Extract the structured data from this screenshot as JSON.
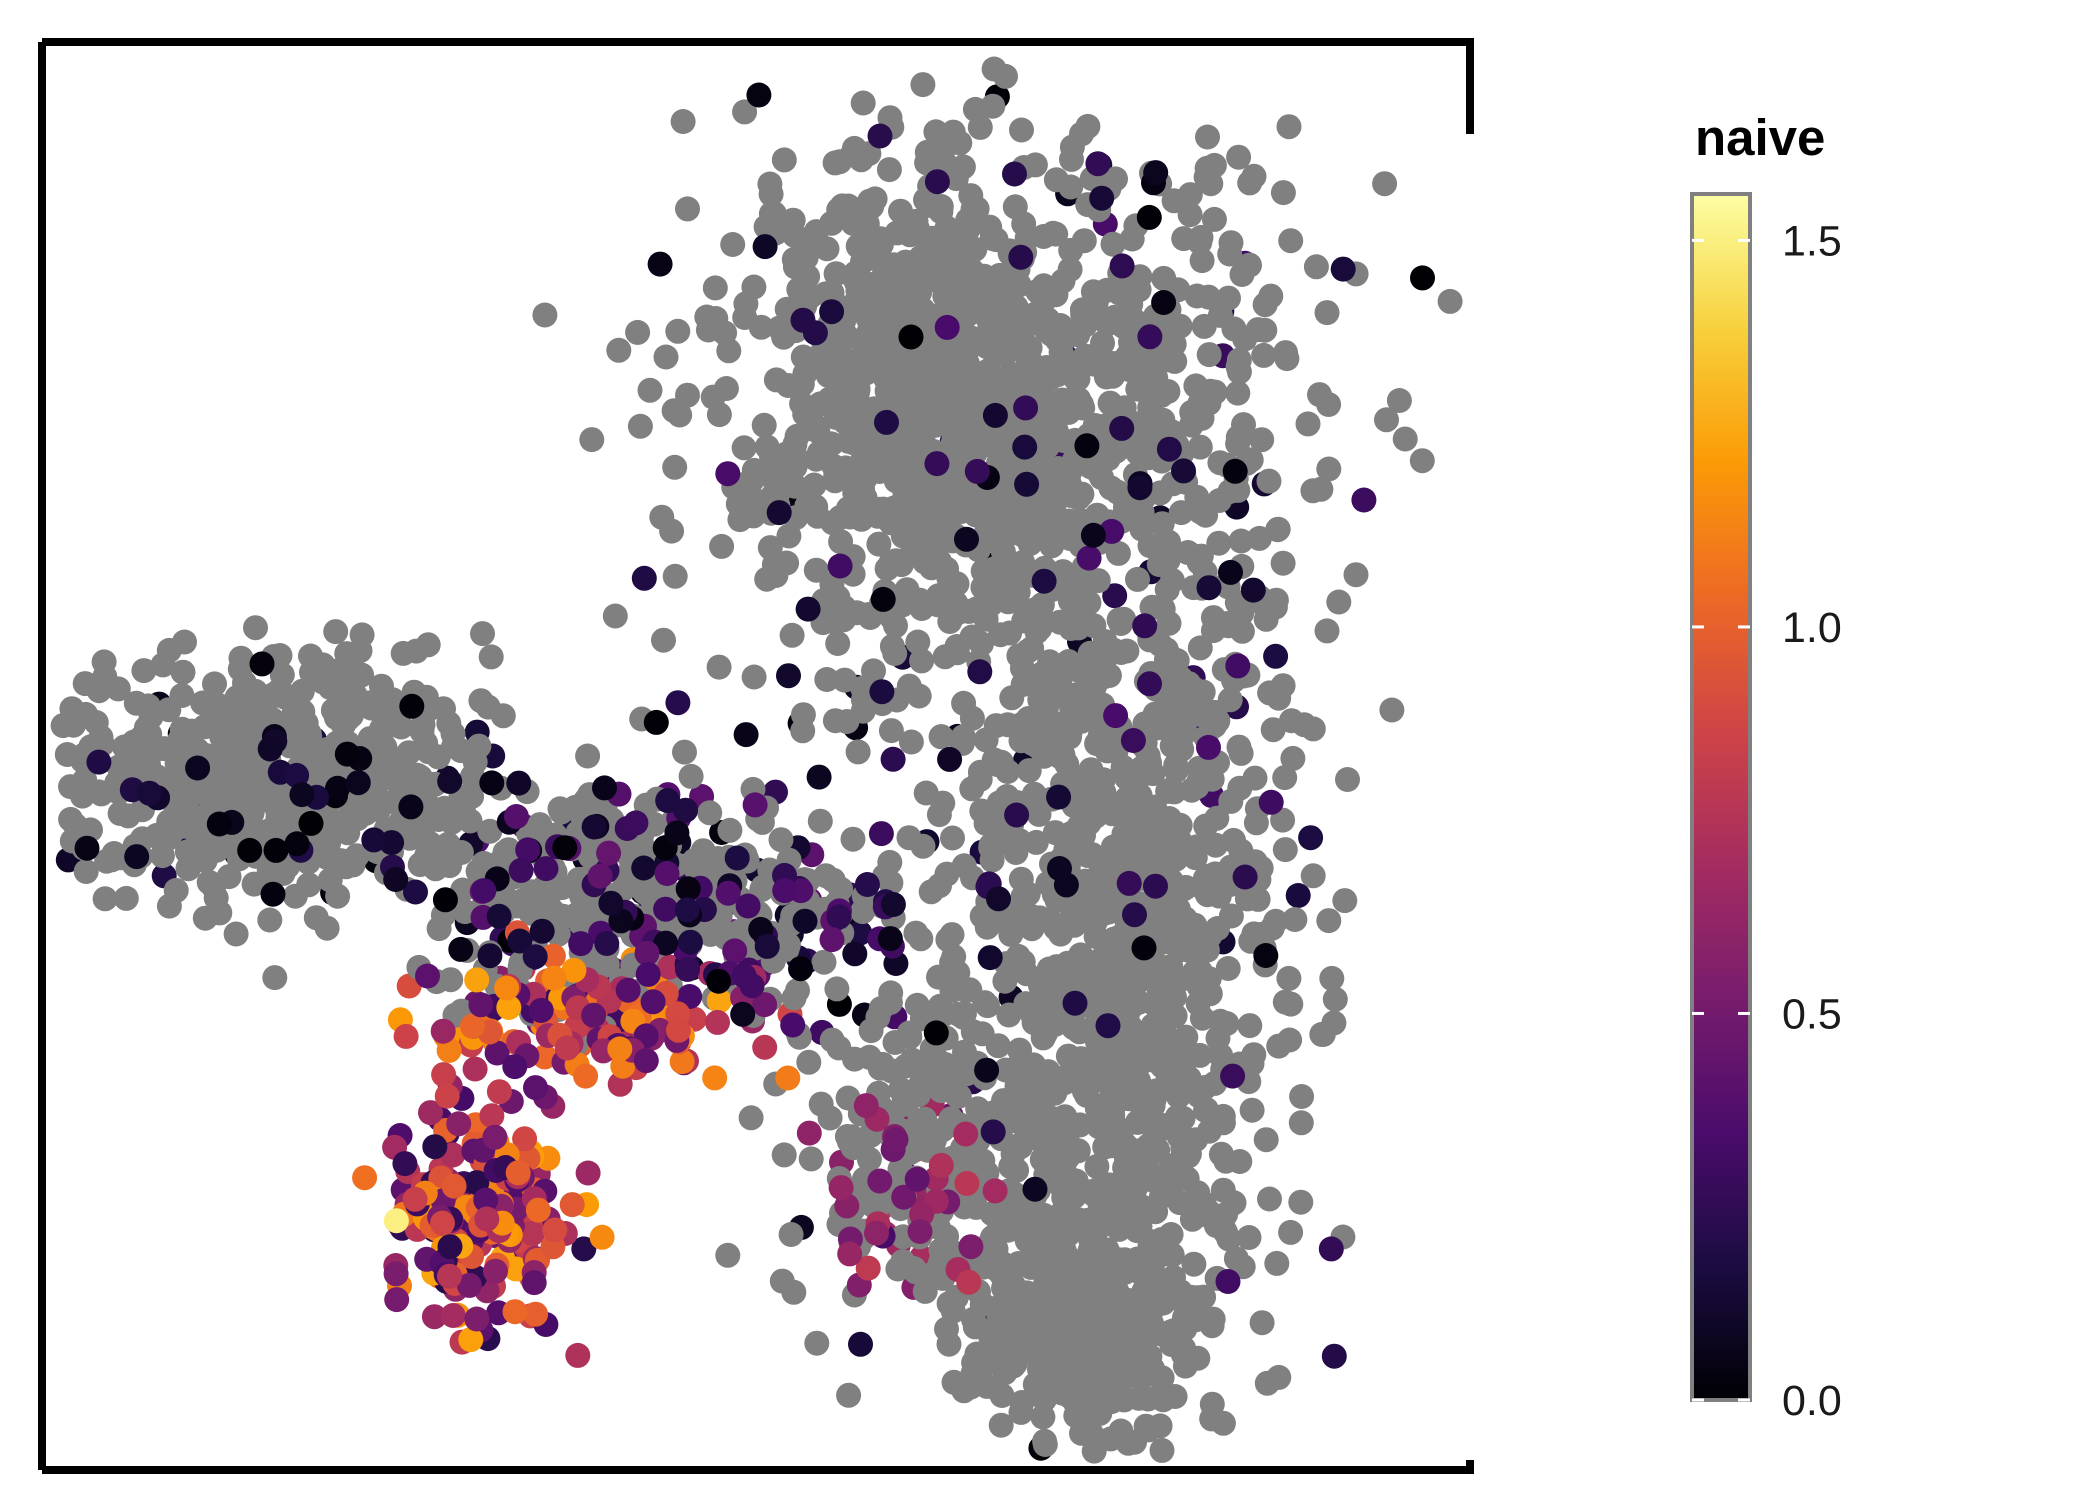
{
  "chart_data": {
    "type": "scatter",
    "title": "",
    "xlabel": "",
    "ylabel": "",
    "grid": false,
    "axis_ticks": false,
    "na_color": "#808080",
    "colorscale": {
      "name": "inferno",
      "title": "naive",
      "range": [
        0,
        1.56
      ],
      "ticks": [
        {
          "value": 0.0,
          "label": "0.0"
        },
        {
          "value": 0.5,
          "label": "0.5"
        },
        {
          "value": 1.0,
          "label": "1.0"
        },
        {
          "value": 1.5,
          "label": "1.5"
        }
      ],
      "stops": [
        "#000004",
        "#1b0c41",
        "#4a0c6b",
        "#781c6d",
        "#a52c60",
        "#cf4446",
        "#ed6925",
        "#fb9b06",
        "#f7d13d",
        "#fcffa4"
      ]
    },
    "legend_position": "right",
    "xlim": [
      0,
      100
    ],
    "ylim": [
      0,
      100
    ],
    "clusters_gray": [
      {
        "name": "upper-right-dense",
        "cx": 68,
        "cy": 72,
        "sx": 11,
        "sy": 11,
        "n": 900
      },
      {
        "name": "top-right-lobe",
        "cx": 62,
        "cy": 79,
        "sx": 5,
        "sy": 6,
        "n": 350
      },
      {
        "name": "right-trunk",
        "cx": 76,
        "cy": 34,
        "sx": 6,
        "sy": 16,
        "n": 900
      },
      {
        "name": "bottom-tip",
        "cx": 73,
        "cy": 9,
        "sx": 4,
        "sy": 4,
        "n": 260
      },
      {
        "name": "left-arm",
        "cx": 15,
        "cy": 48,
        "sx": 8,
        "sy": 4.5,
        "n": 550
      },
      {
        "name": "middle-bridge",
        "cx": 42,
        "cy": 40,
        "sx": 8,
        "sy": 4,
        "n": 280
      },
      {
        "name": "lower-middle",
        "cx": 62,
        "cy": 22,
        "sx": 5,
        "sy": 6,
        "n": 200
      }
    ],
    "clusters_colored": [
      {
        "name": "bottom-left-hook",
        "cx": 30,
        "cy": 17,
        "sx": 3.2,
        "sy": 4,
        "n": 220,
        "vmin": 0.2,
        "vmax": 1.25
      },
      {
        "name": "hook-arc",
        "cx": 38,
        "cy": 31,
        "sx": 6,
        "sy": 2.5,
        "n": 140,
        "vmin": 0.3,
        "vmax": 1.25
      },
      {
        "name": "bridge-dark",
        "cx": 44,
        "cy": 39,
        "sx": 9,
        "sy": 4,
        "n": 160,
        "vmin": 0.0,
        "vmax": 0.45
      },
      {
        "name": "scattered-dark",
        "cx": 70,
        "cy": 60,
        "sx": 12,
        "sy": 22,
        "n": 160,
        "vmin": 0.0,
        "vmax": 0.35
      },
      {
        "name": "left-arm-dark",
        "cx": 17,
        "cy": 47,
        "sx": 8,
        "sy": 4,
        "n": 60,
        "vmin": 0.0,
        "vmax": 0.2
      },
      {
        "name": "lower-middle-pink",
        "cx": 61,
        "cy": 19,
        "sx": 3,
        "sy": 3,
        "n": 50,
        "vmin": 0.4,
        "vmax": 0.8
      }
    ],
    "highlight_points": [
      {
        "x": 24.2,
        "y": 16.5,
        "v": 1.5
      }
    ]
  }
}
